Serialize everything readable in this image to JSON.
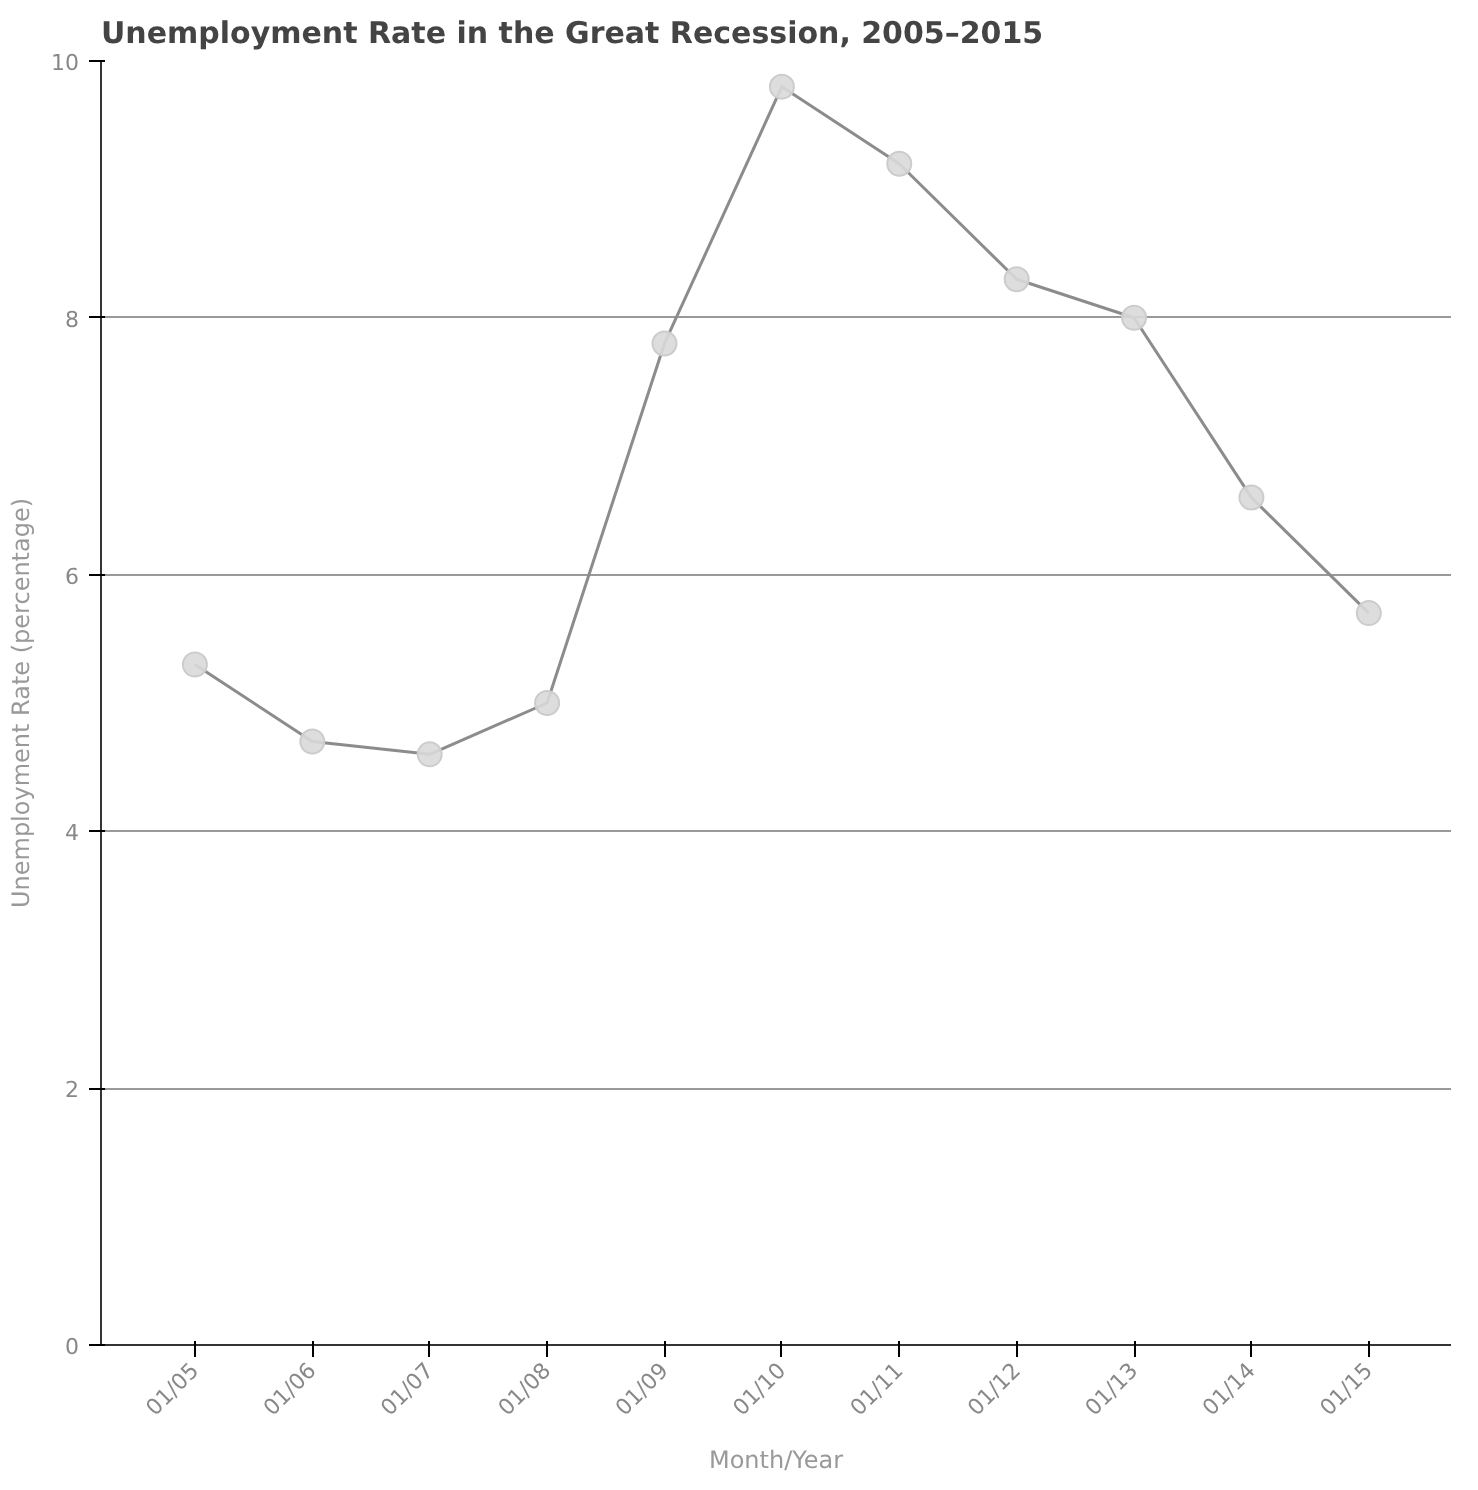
{
  "chart_data": {
    "type": "line",
    "title": "Unemployment Rate in the Great Recession, 2005–2015",
    "xlabel": "Month/Year",
    "ylabel": "Unemployment Rate (percentage)",
    "categories": [
      "01/05",
      "01/06",
      "01/07",
      "01/08",
      "01/09",
      "01/10",
      "01/11",
      "01/12",
      "01/13",
      "01/14",
      "01/15"
    ],
    "series": [
      {
        "color": "#8c8c8c",
        "values": [
          5.3,
          4.7,
          4.6,
          5.0,
          7.8,
          9.8,
          9.2,
          8.3,
          8.0,
          6.6,
          5.7
        ]
      }
    ],
    "ylim": [
      0,
      10
    ],
    "yticks": [
      0,
      2,
      4,
      6,
      8,
      10
    ],
    "grid": "y",
    "marker": "circle",
    "line_style": "solid"
  }
}
